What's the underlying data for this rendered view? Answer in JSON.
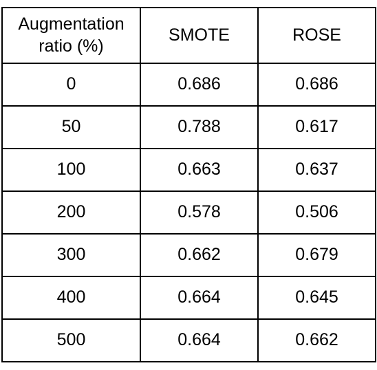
{
  "table": {
    "header": [
      "Augmentation ratio (%)",
      "SMOTE",
      "ROSE"
    ],
    "rows": [
      [
        0,
        0.686,
        0.686
      ],
      [
        50,
        0.788,
        0.617
      ],
      [
        100,
        0.663,
        0.637
      ],
      [
        200,
        0.578,
        0.506
      ],
      [
        300,
        0.662,
        0.679
      ],
      [
        400,
        0.664,
        0.645
      ],
      [
        500,
        0.664,
        0.662
      ]
    ]
  }
}
